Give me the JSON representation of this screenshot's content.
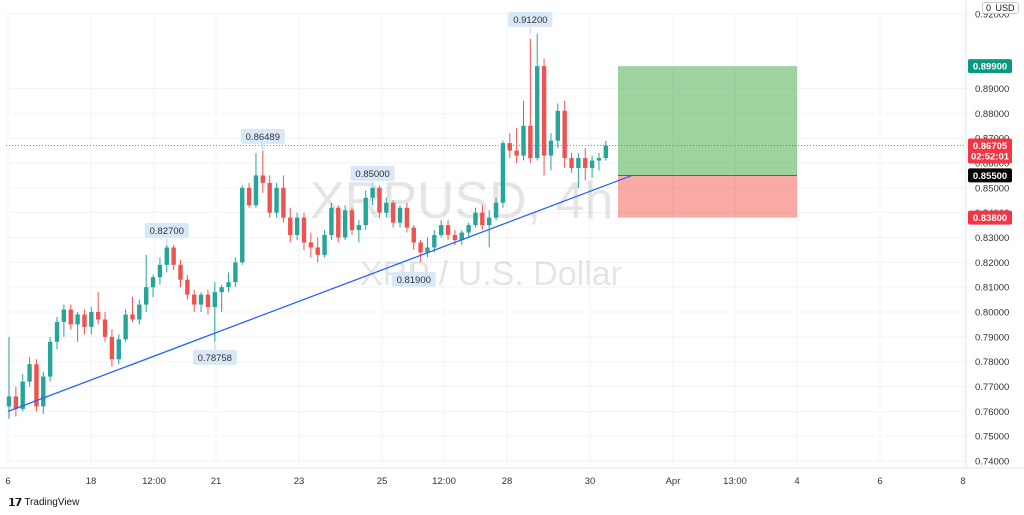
{
  "chart_data": {
    "type": "candlestick",
    "symbol_watermark": "XRPUSD, 4h",
    "symbol_description": "XRP / U.S. Dollar",
    "currency": "USD",
    "currency_badge_prefix": "0",
    "ylim": [
      0.738,
      0.92
    ],
    "price_ticks": [
      "0.92000",
      "0.89000",
      "0.88000",
      "0.87000",
      "0.86000",
      "0.85000",
      "0.84000",
      "0.83000",
      "0.82000",
      "0.81000",
      "0.80000",
      "0.79000",
      "0.78000",
      "0.77000",
      "0.76000",
      "0.75000",
      "0.74000"
    ],
    "x_ticks": [
      "6",
      "18",
      "12:00",
      "21",
      "23",
      "25",
      "12:00",
      "28",
      "30",
      "Apr",
      "13:00",
      "4",
      "6",
      "8"
    ],
    "price_tags": {
      "take_profit": {
        "label": "0.89900",
        "value": 0.899,
        "color": "#089981"
      },
      "current": {
        "label": "0.86705",
        "value": 0.86705,
        "color": "#f23645"
      },
      "countdown": "02:52:01",
      "entry": {
        "label": "0.85500",
        "value": 0.855,
        "color": "#000000"
      },
      "stop_loss": {
        "label": "0.83800",
        "value": 0.838,
        "color": "#f23645"
      }
    },
    "callouts": [
      {
        "label": "0.82700",
        "value": 0.827
      },
      {
        "label": "0.78758",
        "value": 0.78758
      },
      {
        "label": "0.86489",
        "value": 0.86489
      },
      {
        "label": "0.85000",
        "value": 0.85
      },
      {
        "label": "0.81900",
        "value": 0.819
      },
      {
        "label": "0.91200",
        "value": 0.912
      }
    ],
    "trendline": {
      "start": 0.76,
      "end": 0.855
    },
    "position": {
      "entry": 0.855,
      "take_profit": 0.899,
      "stop_loss": 0.838
    },
    "candles": [
      {
        "o": 0.762,
        "h": 0.79,
        "l": 0.757,
        "c": 0.766
      },
      {
        "o": 0.766,
        "h": 0.77,
        "l": 0.758,
        "c": 0.761
      },
      {
        "o": 0.761,
        "h": 0.775,
        "l": 0.76,
        "c": 0.772
      },
      {
        "o": 0.772,
        "h": 0.782,
        "l": 0.77,
        "c": 0.779
      },
      {
        "o": 0.779,
        "h": 0.781,
        "l": 0.76,
        "c": 0.762
      },
      {
        "o": 0.762,
        "h": 0.776,
        "l": 0.759,
        "c": 0.774
      },
      {
        "o": 0.774,
        "h": 0.79,
        "l": 0.772,
        "c": 0.788
      },
      {
        "o": 0.788,
        "h": 0.798,
        "l": 0.785,
        "c": 0.796
      },
      {
        "o": 0.796,
        "h": 0.803,
        "l": 0.79,
        "c": 0.801
      },
      {
        "o": 0.801,
        "h": 0.803,
        "l": 0.793,
        "c": 0.795
      },
      {
        "o": 0.795,
        "h": 0.8,
        "l": 0.788,
        "c": 0.799
      },
      {
        "o": 0.799,
        "h": 0.801,
        "l": 0.791,
        "c": 0.794
      },
      {
        "o": 0.794,
        "h": 0.802,
        "l": 0.791,
        "c": 0.8
      },
      {
        "o": 0.8,
        "h": 0.808,
        "l": 0.795,
        "c": 0.797
      },
      {
        "o": 0.797,
        "h": 0.8,
        "l": 0.788,
        "c": 0.79
      },
      {
        "o": 0.79,
        "h": 0.793,
        "l": 0.778,
        "c": 0.781
      },
      {
        "o": 0.781,
        "h": 0.791,
        "l": 0.779,
        "c": 0.789
      },
      {
        "o": 0.789,
        "h": 0.801,
        "l": 0.788,
        "c": 0.799
      },
      {
        "o": 0.799,
        "h": 0.806,
        "l": 0.796,
        "c": 0.797
      },
      {
        "o": 0.797,
        "h": 0.805,
        "l": 0.795,
        "c": 0.803
      },
      {
        "o": 0.803,
        "h": 0.823,
        "l": 0.8,
        "c": 0.81
      },
      {
        "o": 0.81,
        "h": 0.815,
        "l": 0.806,
        "c": 0.814
      },
      {
        "o": 0.814,
        "h": 0.822,
        "l": 0.811,
        "c": 0.819
      },
      {
        "o": 0.819,
        "h": 0.827,
        "l": 0.816,
        "c": 0.826
      },
      {
        "o": 0.826,
        "h": 0.827,
        "l": 0.817,
        "c": 0.819
      },
      {
        "o": 0.819,
        "h": 0.821,
        "l": 0.81,
        "c": 0.813
      },
      {
        "o": 0.813,
        "h": 0.815,
        "l": 0.805,
        "c": 0.807
      },
      {
        "o": 0.807,
        "h": 0.809,
        "l": 0.8,
        "c": 0.803
      },
      {
        "o": 0.803,
        "h": 0.808,
        "l": 0.8,
        "c": 0.807
      },
      {
        "o": 0.807,
        "h": 0.809,
        "l": 0.799,
        "c": 0.802
      },
      {
        "o": 0.802,
        "h": 0.812,
        "l": 0.788,
        "c": 0.808
      },
      {
        "o": 0.808,
        "h": 0.811,
        "l": 0.8,
        "c": 0.81
      },
      {
        "o": 0.81,
        "h": 0.816,
        "l": 0.808,
        "c": 0.812
      },
      {
        "o": 0.812,
        "h": 0.822,
        "l": 0.81,
        "c": 0.82
      },
      {
        "o": 0.82,
        "h": 0.851,
        "l": 0.819,
        "c": 0.85
      },
      {
        "o": 0.85,
        "h": 0.852,
        "l": 0.842,
        "c": 0.843
      },
      {
        "o": 0.843,
        "h": 0.864,
        "l": 0.842,
        "c": 0.855
      },
      {
        "o": 0.855,
        "h": 0.865,
        "l": 0.848,
        "c": 0.852
      },
      {
        "o": 0.852,
        "h": 0.855,
        "l": 0.838,
        "c": 0.84
      },
      {
        "o": 0.84,
        "h": 0.852,
        "l": 0.838,
        "c": 0.85
      },
      {
        "o": 0.85,
        "h": 0.855,
        "l": 0.836,
        "c": 0.838
      },
      {
        "o": 0.838,
        "h": 0.842,
        "l": 0.828,
        "c": 0.831
      },
      {
        "o": 0.831,
        "h": 0.84,
        "l": 0.829,
        "c": 0.838
      },
      {
        "o": 0.838,
        "h": 0.84,
        "l": 0.825,
        "c": 0.828
      },
      {
        "o": 0.828,
        "h": 0.832,
        "l": 0.822,
        "c": 0.826
      },
      {
        "o": 0.826,
        "h": 0.83,
        "l": 0.82,
        "c": 0.823
      },
      {
        "o": 0.823,
        "h": 0.833,
        "l": 0.822,
        "c": 0.831
      },
      {
        "o": 0.831,
        "h": 0.844,
        "l": 0.829,
        "c": 0.842
      },
      {
        "o": 0.842,
        "h": 0.843,
        "l": 0.828,
        "c": 0.83
      },
      {
        "o": 0.83,
        "h": 0.843,
        "l": 0.829,
        "c": 0.841
      },
      {
        "o": 0.841,
        "h": 0.842,
        "l": 0.831,
        "c": 0.833
      },
      {
        "o": 0.833,
        "h": 0.837,
        "l": 0.828,
        "c": 0.835
      },
      {
        "o": 0.835,
        "h": 0.849,
        "l": 0.833,
        "c": 0.846
      },
      {
        "o": 0.846,
        "h": 0.852,
        "l": 0.843,
        "c": 0.85
      },
      {
        "o": 0.85,
        "h": 0.851,
        "l": 0.838,
        "c": 0.84
      },
      {
        "o": 0.84,
        "h": 0.846,
        "l": 0.838,
        "c": 0.844
      },
      {
        "o": 0.844,
        "h": 0.845,
        "l": 0.834,
        "c": 0.836
      },
      {
        "o": 0.836,
        "h": 0.843,
        "l": 0.834,
        "c": 0.842
      },
      {
        "o": 0.842,
        "h": 0.844,
        "l": 0.832,
        "c": 0.834
      },
      {
        "o": 0.834,
        "h": 0.835,
        "l": 0.825,
        "c": 0.828
      },
      {
        "o": 0.828,
        "h": 0.829,
        "l": 0.82,
        "c": 0.824
      },
      {
        "o": 0.824,
        "h": 0.83,
        "l": 0.822,
        "c": 0.826
      },
      {
        "o": 0.826,
        "h": 0.833,
        "l": 0.824,
        "c": 0.831
      },
      {
        "o": 0.831,
        "h": 0.837,
        "l": 0.83,
        "c": 0.835
      },
      {
        "o": 0.835,
        "h": 0.837,
        "l": 0.829,
        "c": 0.831
      },
      {
        "o": 0.831,
        "h": 0.833,
        "l": 0.827,
        "c": 0.829
      },
      {
        "o": 0.829,
        "h": 0.833,
        "l": 0.827,
        "c": 0.832
      },
      {
        "o": 0.832,
        "h": 0.836,
        "l": 0.83,
        "c": 0.835
      },
      {
        "o": 0.835,
        "h": 0.842,
        "l": 0.834,
        "c": 0.84
      },
      {
        "o": 0.84,
        "h": 0.843,
        "l": 0.833,
        "c": 0.835
      },
      {
        "o": 0.835,
        "h": 0.841,
        "l": 0.826,
        "c": 0.838
      },
      {
        "o": 0.838,
        "h": 0.846,
        "l": 0.837,
        "c": 0.844
      },
      {
        "o": 0.844,
        "h": 0.869,
        "l": 0.842,
        "c": 0.868
      },
      {
        "o": 0.868,
        "h": 0.872,
        "l": 0.862,
        "c": 0.865
      },
      {
        "o": 0.865,
        "h": 0.874,
        "l": 0.86,
        "c": 0.863
      },
      {
        "o": 0.863,
        "h": 0.885,
        "l": 0.861,
        "c": 0.875
      },
      {
        "o": 0.875,
        "h": 0.91,
        "l": 0.86,
        "c": 0.862
      },
      {
        "o": 0.862,
        "h": 0.912,
        "l": 0.861,
        "c": 0.899
      },
      {
        "o": 0.899,
        "h": 0.902,
        "l": 0.855,
        "c": 0.863
      },
      {
        "o": 0.863,
        "h": 0.872,
        "l": 0.857,
        "c": 0.869
      },
      {
        "o": 0.869,
        "h": 0.884,
        "l": 0.866,
        "c": 0.881
      },
      {
        "o": 0.881,
        "h": 0.885,
        "l": 0.858,
        "c": 0.862
      },
      {
        "o": 0.862,
        "h": 0.864,
        "l": 0.856,
        "c": 0.858
      },
      {
        "o": 0.858,
        "h": 0.864,
        "l": 0.85,
        "c": 0.862
      },
      {
        "o": 0.862,
        "h": 0.866,
        "l": 0.853,
        "c": 0.858
      },
      {
        "o": 0.858,
        "h": 0.863,
        "l": 0.854,
        "c": 0.861
      },
      {
        "o": 0.861,
        "h": 0.864,
        "l": 0.857,
        "c": 0.862
      },
      {
        "o": 0.862,
        "h": 0.869,
        "l": 0.861,
        "c": 0.867
      }
    ]
  }
}
